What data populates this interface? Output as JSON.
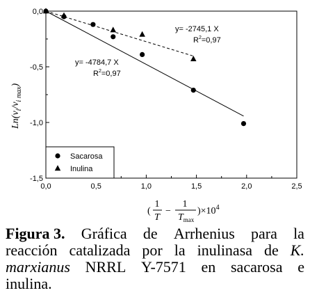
{
  "chart_data": {
    "type": "scatter",
    "xlim": [
      0.0,
      2.5
    ],
    "ylim": [
      -1.5,
      0.0
    ],
    "xticks": [
      "0,0",
      "0,5",
      "1,0",
      "1,5",
      "2,0",
      "2,5"
    ],
    "yticks": [
      "0,0",
      "-0,5",
      "-1,0",
      "-1,5"
    ],
    "xtick_values": [
      0.0,
      0.5,
      1.0,
      1.5,
      2.0,
      2.5
    ],
    "ytick_values": [
      0.0,
      -0.5,
      -1.0,
      -1.5
    ],
    "ylabel": {
      "main": "Ln(v",
      "sub1": "i",
      "slash": "/v",
      "sub2": "i max",
      "close": ")"
    },
    "xlabel": {
      "open": "(",
      "num1": "1",
      "den1": "T",
      "minus": "−",
      "num2": "1",
      "den2": "T",
      "den2_sub": "max",
      "close": ")×10",
      "exp": "4"
    },
    "series": [
      {
        "name": "Sacarosa",
        "marker": "circle",
        "x": [
          0.0,
          0.18,
          0.47,
          0.67,
          0.96,
          1.47,
          1.97
        ],
        "y": [
          0.0,
          -0.05,
          -0.12,
          -0.23,
          -0.39,
          -0.71,
          -1.01
        ],
        "fit": {
          "slope": -0.4784,
          "x": [
            0.0,
            1.97
          ],
          "style": "solid"
        }
      },
      {
        "name": "Inulina",
        "marker": "triangle",
        "x": [
          0.0,
          0.18,
          0.67,
          0.96,
          1.47
        ],
        "y": [
          0.0,
          -0.04,
          -0.17,
          -0.21,
          -0.43
        ],
        "fit": {
          "slope": -0.2745,
          "x": [
            0.0,
            1.47
          ],
          "style": "dashed"
        }
      }
    ],
    "annotations": [
      {
        "id": "inulina-eq",
        "line1": "y= -2745,1 X",
        "r2": "R",
        "r2_exp": "2",
        "r2_val": "=0,97"
      },
      {
        "id": "sacarosa-eq",
        "line1": "y= -4784,7 X",
        "r2": "R",
        "r2_exp": "2",
        "r2_val": "=0,97"
      }
    ],
    "legend_position": "bottom-left",
    "grid": false
  },
  "caption": {
    "label": "Figura 3.",
    "line1_words": [
      "Gráfica",
      "de",
      "Arrhenius",
      "para",
      "la"
    ],
    "line2_words": [
      "reacción",
      "catalizada",
      "por",
      "la",
      "inulinasa",
      "de"
    ],
    "line2_italic": "K.",
    "line3_italic": "marxianus",
    "line3_words": [
      "NRRL",
      "Y-7571",
      "en",
      "sacarosa",
      "e"
    ],
    "line4": "inulina."
  }
}
